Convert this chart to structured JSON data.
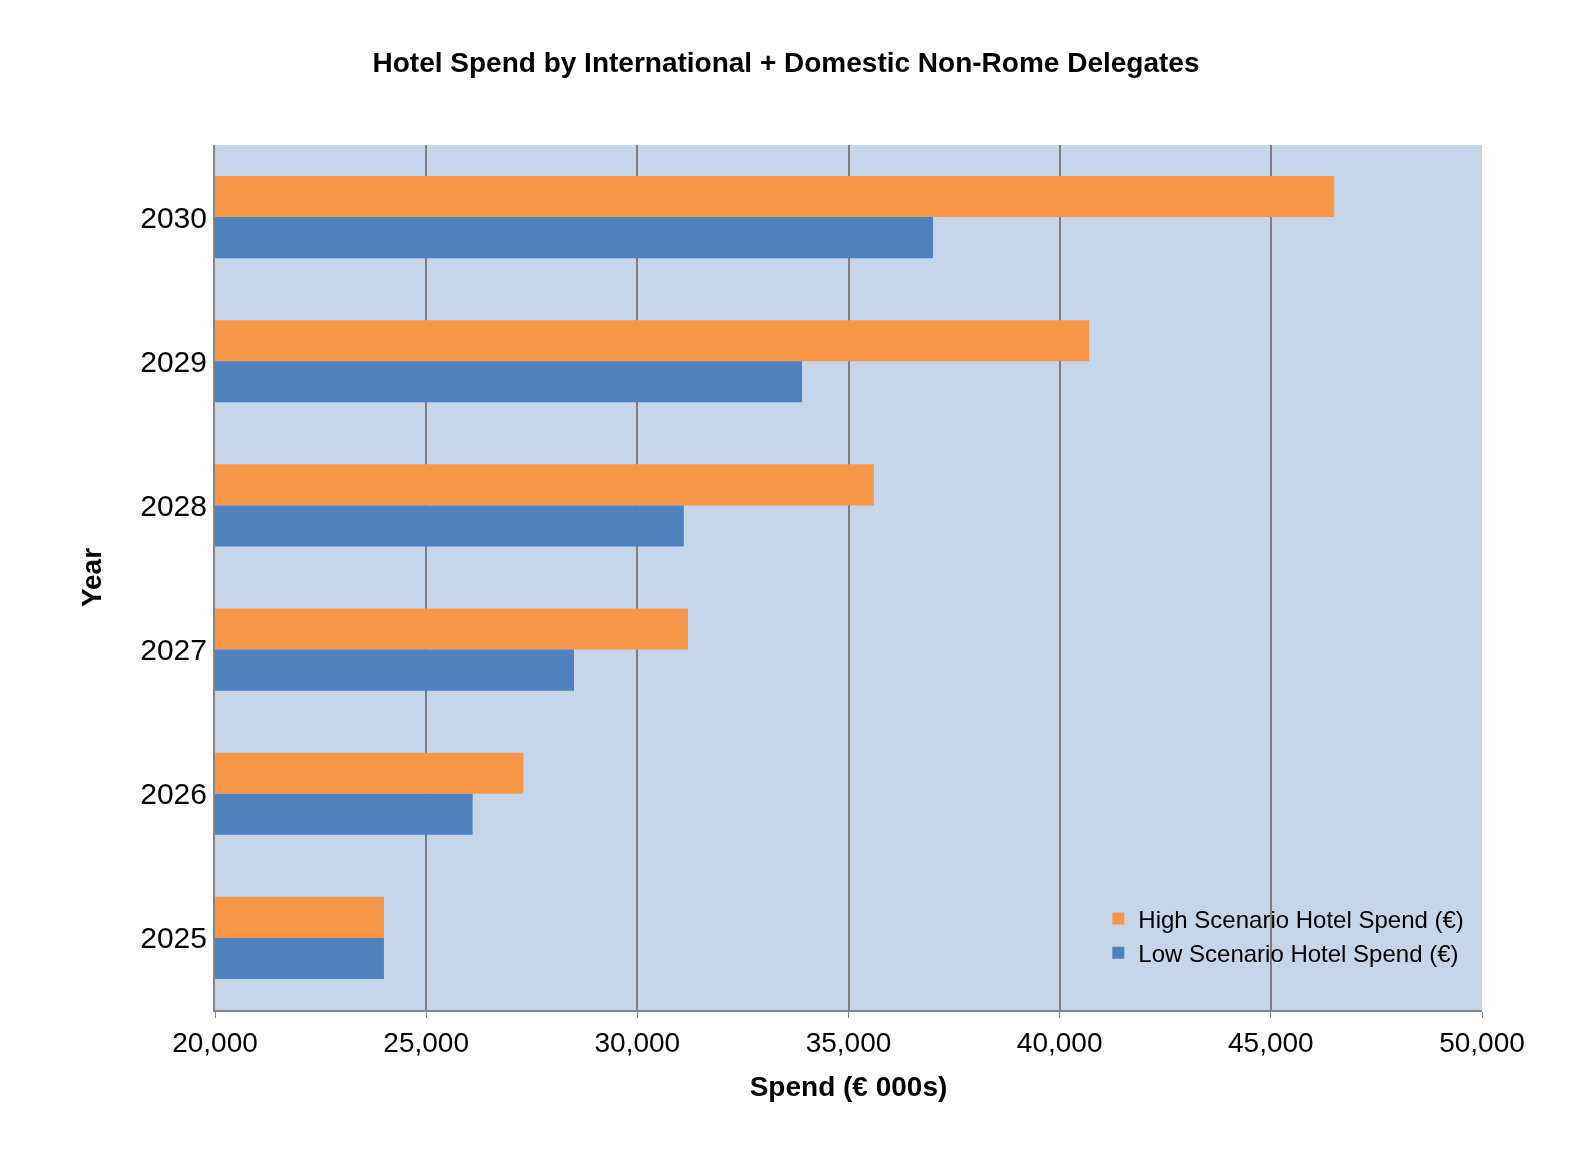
{
  "chart_data": {
    "type": "bar",
    "orientation": "horizontal",
    "title": "Hotel Spend by International + Domestic Non-Rome Delegates",
    "xlabel": "Spend (€ 000s)",
    "ylabel": "Year",
    "categories": [
      "2030",
      "2029",
      "2028",
      "2027",
      "2026",
      "2025"
    ],
    "series": [
      {
        "name": "High Scenario Hotel Spend (€)",
        "color": "#f79646",
        "values": [
          46500,
          40700,
          35600,
          31200,
          27300,
          24000
        ]
      },
      {
        "name": "Low Scenario Hotel Spend (€)",
        "color": "#4f81bd",
        "values": [
          37000,
          33900,
          31100,
          28500,
          26100,
          24000
        ]
      }
    ],
    "xlim": [
      20000,
      50000
    ],
    "xticks": [
      {
        "value": 20000,
        "label": "20,000"
      },
      {
        "value": 25000,
        "label": "25,000"
      },
      {
        "value": 30000,
        "label": "30,000"
      },
      {
        "value": 35000,
        "label": "35,000"
      },
      {
        "value": 40000,
        "label": "40,000"
      },
      {
        "value": 45000,
        "label": "45,000"
      },
      {
        "value": 50000,
        "label": "50,000"
      }
    ],
    "grid": "x",
    "legend": "bottom right"
  }
}
